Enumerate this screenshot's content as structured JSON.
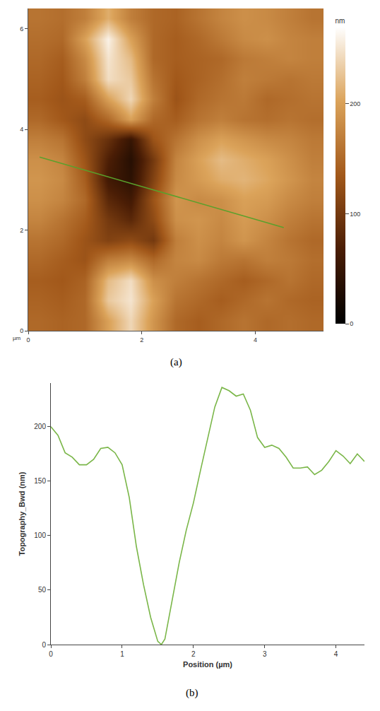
{
  "chart_data": [
    {
      "type": "heatmap",
      "panel_label": "(a)",
      "xlabel": "µm",
      "x": [
        0.2,
        0.6,
        1.0,
        1.4,
        1.8,
        2.2,
        2.6,
        3.0,
        3.4,
        3.8,
        4.2,
        4.6,
        5.0
      ],
      "y": [
        0.2,
        0.6,
        1.0,
        1.4,
        1.8,
        2.2,
        2.6,
        3.0,
        3.4,
        3.8,
        4.2,
        4.6,
        5.0,
        5.4,
        5.8,
        6.2
      ],
      "z": [
        [
          150,
          145,
          150,
          200,
          240,
          190,
          150,
          140,
          150,
          160,
          150,
          155,
          150
        ],
        [
          145,
          140,
          150,
          230,
          250,
          200,
          160,
          150,
          140,
          150,
          160,
          150,
          145
        ],
        [
          140,
          135,
          145,
          220,
          245,
          185,
          170,
          160,
          150,
          140,
          150,
          160,
          150
        ],
        [
          150,
          140,
          130,
          170,
          180,
          150,
          175,
          180,
          165,
          160,
          170,
          165,
          155
        ],
        [
          160,
          150,
          130,
          110,
          120,
          100,
          170,
          185,
          175,
          190,
          175,
          160,
          150
        ],
        [
          175,
          160,
          140,
          100,
          80,
          120,
          185,
          190,
          180,
          195,
          185,
          170,
          160
        ],
        [
          185,
          175,
          150,
          80,
          60,
          130,
          190,
          180,
          185,
          200,
          195,
          180,
          170
        ],
        [
          190,
          180,
          140,
          60,
          40,
          110,
          180,
          195,
          210,
          215,
          205,
          190,
          175
        ],
        [
          185,
          175,
          130,
          70,
          35,
          100,
          175,
          200,
          220,
          210,
          200,
          185,
          170
        ],
        [
          170,
          160,
          120,
          90,
          50,
          130,
          160,
          185,
          200,
          190,
          180,
          175,
          165
        ],
        [
          150,
          135,
          120,
          150,
          200,
          150,
          140,
          160,
          170,
          160,
          155,
          160,
          155
        ],
        [
          140,
          130,
          140,
          200,
          240,
          170,
          130,
          150,
          160,
          165,
          150,
          155,
          160
        ],
        [
          145,
          135,
          170,
          245,
          230,
          160,
          135,
          145,
          155,
          170,
          165,
          160,
          165
        ],
        [
          150,
          140,
          180,
          250,
          220,
          150,
          140,
          145,
          150,
          165,
          170,
          175,
          170
        ],
        [
          155,
          150,
          200,
          260,
          200,
          150,
          140,
          150,
          165,
          180,
          185,
          175,
          170
        ],
        [
          160,
          155,
          170,
          210,
          170,
          150,
          145,
          160,
          175,
          185,
          180,
          170,
          160
        ]
      ],
      "xlim": [
        0,
        5.2
      ],
      "ylim": [
        0,
        6.4
      ],
      "xticks": [
        0,
        2,
        4
      ],
      "yticks": [
        0,
        2,
        4,
        6
      ],
      "colorbar": {
        "title": "nm",
        "range": [
          0,
          270
        ],
        "ticks": [
          0,
          100,
          200
        ]
      },
      "profile_line": {
        "x": [
          0.2,
          4.5
        ],
        "y": [
          3.45,
          2.05
        ],
        "color": "#5aa02c"
      },
      "grid": false
    },
    {
      "type": "line",
      "panel_label": "(b)",
      "xlabel": "Position (µm)",
      "ylabel": "Topography_Bwd (nm)",
      "x": [
        0,
        0.1,
        0.2,
        0.3,
        0.4,
        0.5,
        0.6,
        0.7,
        0.8,
        0.9,
        1.0,
        1.1,
        1.2,
        1.3,
        1.4,
        1.5,
        1.55,
        1.6,
        1.7,
        1.8,
        1.9,
        2.0,
        2.1,
        2.2,
        2.3,
        2.4,
        2.5,
        2.6,
        2.7,
        2.8,
        2.9,
        3.0,
        3.1,
        3.2,
        3.3,
        3.4,
        3.5,
        3.6,
        3.7,
        3.8,
        3.9,
        4.0,
        4.1,
        4.2,
        4.3,
        4.4
      ],
      "values": [
        200,
        192,
        176,
        172,
        165,
        165,
        170,
        180,
        181,
        176,
        165,
        135,
        90,
        55,
        25,
        3,
        0,
        5,
        40,
        75,
        105,
        130,
        160,
        190,
        218,
        236,
        233,
        228,
        230,
        215,
        190,
        181,
        183,
        180,
        172,
        162,
        162,
        163,
        156,
        160,
        168,
        178,
        173,
        166,
        175,
        168
      ],
      "color": "#7ab648",
      "xlim": [
        0,
        4.4
      ],
      "ylim": [
        0,
        240
      ],
      "xticks": [
        0,
        1,
        2,
        3,
        4
      ],
      "yticks": [
        0,
        50,
        100,
        150,
        200
      ],
      "grid": false
    }
  ]
}
